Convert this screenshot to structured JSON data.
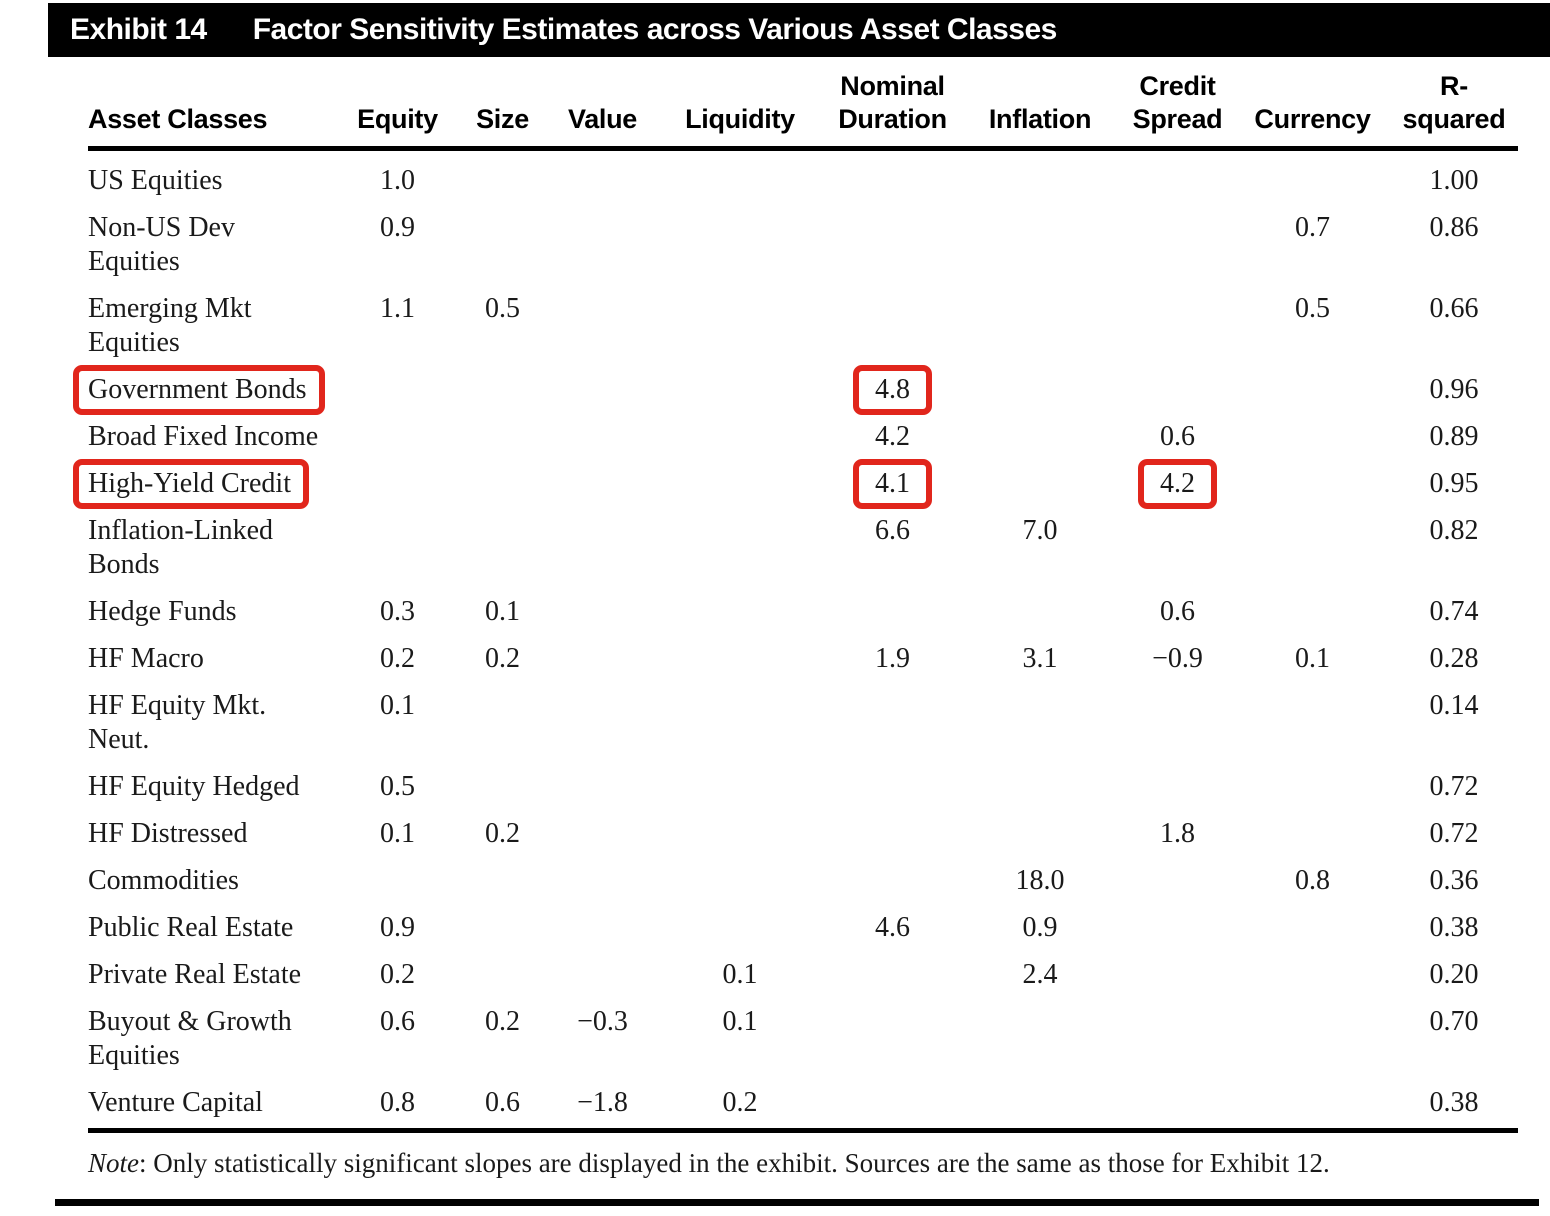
{
  "exhibit": {
    "label": "Exhibit 14",
    "title": "Factor Sensitivity Estimates across Various Asset Classes"
  },
  "table": {
    "columns": [
      {
        "id": "asset-classes",
        "lines": [
          "Asset Classes"
        ]
      },
      {
        "id": "equity",
        "lines": [
          "Equity"
        ]
      },
      {
        "id": "size",
        "lines": [
          "Size"
        ]
      },
      {
        "id": "value",
        "lines": [
          "Value"
        ]
      },
      {
        "id": "liquidity",
        "lines": [
          "Liquidity"
        ]
      },
      {
        "id": "nominal-duration",
        "lines": [
          "Nominal",
          "Duration"
        ]
      },
      {
        "id": "inflation",
        "lines": [
          "Inflation"
        ]
      },
      {
        "id": "credit-spread",
        "lines": [
          "Credit",
          "Spread"
        ]
      },
      {
        "id": "currency",
        "lines": [
          "Currency"
        ]
      },
      {
        "id": "r-squared",
        "lines": [
          "R-squared"
        ]
      }
    ],
    "rows": [
      {
        "label_lines": [
          "US Equities"
        ],
        "values": [
          "1.0",
          "",
          "",
          "",
          "",
          "",
          "",
          "",
          "1.00"
        ],
        "label_highlighted": false,
        "highlight_cols": []
      },
      {
        "label_lines": [
          "Non-US Dev",
          "Equities"
        ],
        "values": [
          "0.9",
          "",
          "",
          "",
          "",
          "",
          "",
          "0.7",
          "0.86"
        ],
        "label_highlighted": false,
        "highlight_cols": []
      },
      {
        "label_lines": [
          "Emerging Mkt",
          "Equities"
        ],
        "values": [
          "1.1",
          "0.5",
          "",
          "",
          "",
          "",
          "",
          "0.5",
          "0.66"
        ],
        "label_highlighted": false,
        "highlight_cols": []
      },
      {
        "label_lines": [
          "Government Bonds"
        ],
        "values": [
          "",
          "",
          "",
          "",
          "4.8",
          "",
          "",
          "",
          "0.96"
        ],
        "label_highlighted": true,
        "highlight_cols": [
          4
        ]
      },
      {
        "label_lines": [
          "Broad Fixed Income"
        ],
        "values": [
          "",
          "",
          "",
          "",
          "4.2",
          "",
          "0.6",
          "",
          "0.89"
        ],
        "label_highlighted": false,
        "highlight_cols": []
      },
      {
        "label_lines": [
          "High-Yield Credit"
        ],
        "values": [
          "",
          "",
          "",
          "",
          "4.1",
          "",
          "4.2",
          "",
          "0.95"
        ],
        "label_highlighted": true,
        "highlight_cols": [
          4,
          6
        ]
      },
      {
        "label_lines": [
          "Inflation-Linked",
          "Bonds"
        ],
        "values": [
          "",
          "",
          "",
          "",
          "6.6",
          "7.0",
          "",
          "",
          "0.82"
        ],
        "label_highlighted": false,
        "highlight_cols": []
      },
      {
        "label_lines": [
          "Hedge Funds"
        ],
        "values": [
          "0.3",
          "0.1",
          "",
          "",
          "",
          "",
          "0.6",
          "",
          "0.74"
        ],
        "label_highlighted": false,
        "highlight_cols": []
      },
      {
        "label_lines": [
          "HF Macro"
        ],
        "values": [
          "0.2",
          "0.2",
          "",
          "",
          "1.9",
          "3.1",
          "−0.9",
          "0.1",
          "0.28"
        ],
        "label_highlighted": false,
        "highlight_cols": []
      },
      {
        "label_lines": [
          "HF Equity Mkt.",
          "Neut."
        ],
        "values": [
          "0.1",
          "",
          "",
          "",
          "",
          "",
          "",
          "",
          "0.14"
        ],
        "label_highlighted": false,
        "highlight_cols": []
      },
      {
        "label_lines": [
          "HF Equity Hedged"
        ],
        "values": [
          "0.5",
          "",
          "",
          "",
          "",
          "",
          "",
          "",
          "0.72"
        ],
        "label_highlighted": false,
        "highlight_cols": []
      },
      {
        "label_lines": [
          "HF Distressed"
        ],
        "values": [
          "0.1",
          "0.2",
          "",
          "",
          "",
          "",
          "1.8",
          "",
          "0.72"
        ],
        "label_highlighted": false,
        "highlight_cols": []
      },
      {
        "label_lines": [
          "Commodities"
        ],
        "values": [
          "",
          "",
          "",
          "",
          "",
          "18.0",
          "",
          "0.8",
          "0.36"
        ],
        "label_highlighted": false,
        "highlight_cols": []
      },
      {
        "label_lines": [
          "Public Real Estate"
        ],
        "values": [
          "0.9",
          "",
          "",
          "",
          "4.6",
          "0.9",
          "",
          "",
          "0.38"
        ],
        "label_highlighted": false,
        "highlight_cols": []
      },
      {
        "label_lines": [
          "Private Real Estate"
        ],
        "values": [
          "0.2",
          "",
          "",
          "0.1",
          "",
          "2.4",
          "",
          "",
          "0.20"
        ],
        "label_highlighted": false,
        "highlight_cols": []
      },
      {
        "label_lines": [
          "Buyout & Growth",
          "Equities"
        ],
        "values": [
          "0.6",
          "0.2",
          "−0.3",
          "0.1",
          "",
          "",
          "",
          "",
          "0.70"
        ],
        "label_highlighted": false,
        "highlight_cols": []
      },
      {
        "label_lines": [
          "Venture Capital"
        ],
        "values": [
          "0.8",
          "0.6",
          "−1.8",
          "0.2",
          "",
          "",
          "",
          "",
          "0.38"
        ],
        "label_highlighted": false,
        "highlight_cols": []
      }
    ]
  },
  "annotations": {
    "highlight_color": "#e1261c",
    "highlighted_items": [
      "Government Bonds",
      "4.8",
      "High-Yield Credit",
      "4.1",
      "4.2"
    ]
  },
  "note": {
    "prefix": "Note",
    "text": ": Only statistically significant slopes are displayed in the exhibit. Sources are the same as those for Exhibit 12."
  }
}
